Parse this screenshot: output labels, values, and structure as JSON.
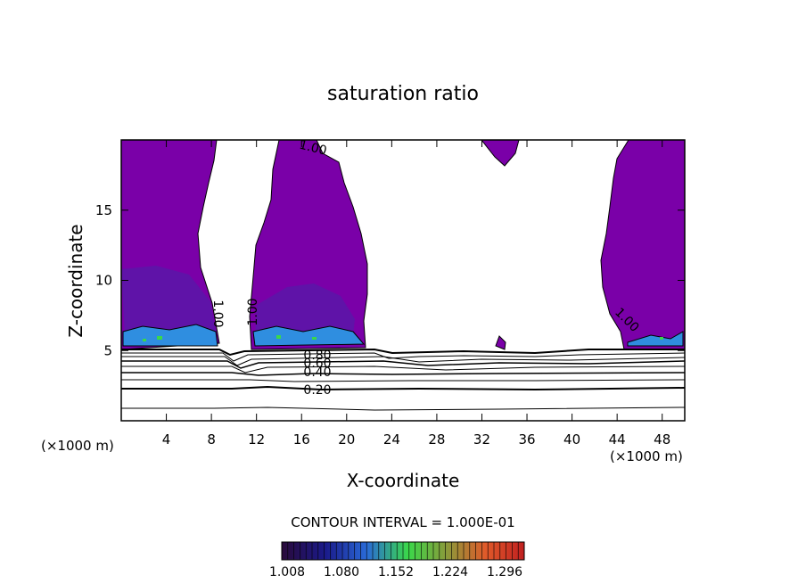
{
  "chart_data": {
    "type": "contour",
    "title": "saturation ratio",
    "xlabel": "X-coordinate",
    "ylabel": "Z-coordinate",
    "x_unit_left": "(×1000 m)",
    "x_unit_right": "(×1000 m)",
    "xlim": [
      0,
      50
    ],
    "ylim": [
      0,
      20
    ],
    "x_ticks": [
      4,
      8,
      12,
      16,
      20,
      24,
      28,
      32,
      36,
      40,
      44,
      48
    ],
    "y_ticks": [
      5,
      10,
      15
    ],
    "contour_interval_text": "CONTOUR INTERVAL = 1.000E-01",
    "contour_labels": [
      "1.00",
      "1.00",
      "1.00",
      "1.00",
      "0.80",
      "0.60",
      "0.40",
      "0.20"
    ],
    "colorbar": {
      "ticks": [
        "1.008",
        "1.080",
        "1.152",
        "1.224",
        "1.296"
      ],
      "range": [
        1.008,
        1.296
      ],
      "colors": [
        "#2a0a3a",
        "#1a1a8a",
        "#2a6ad8",
        "#3ad84a",
        "#d89a3a",
        "#e05a2a",
        "#c02020"
      ]
    },
    "fill_color": "#7a00a8",
    "grid": false
  }
}
